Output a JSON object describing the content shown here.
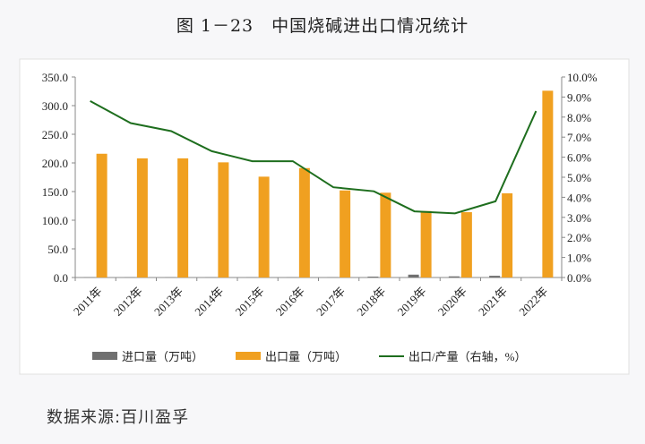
{
  "chart_data": {
    "type": "bar+line",
    "title": "图 1－23　中国烧碱进出口情况统计",
    "categories": [
      "2011年",
      "2012年",
      "2013年",
      "2014年",
      "2015年",
      "2016年",
      "2017年",
      "2018年",
      "2019年",
      "2020年",
      "2021年",
      "2022年"
    ],
    "series": [
      {
        "name": "进口量（万吨）",
        "type": "bar",
        "axis": "left",
        "color": "#707070",
        "values": [
          0.3,
          0.3,
          0.3,
          0.3,
          0.3,
          0.3,
          0.3,
          1.5,
          5,
          2,
          3,
          0.3
        ]
      },
      {
        "name": "出口量（万吨）",
        "type": "bar",
        "axis": "left",
        "color": "#f0a020",
        "values": [
          216,
          208,
          208,
          201,
          176,
          191,
          152,
          148,
          116,
          114,
          147,
          326
        ]
      },
      {
        "name": "出口/产量（右轴，%）",
        "type": "line",
        "axis": "right",
        "color": "#1e6e1e",
        "values": [
          8.8,
          7.7,
          7.3,
          6.3,
          5.8,
          5.8,
          4.5,
          4.3,
          3.3,
          3.2,
          3.8,
          8.3
        ]
      }
    ],
    "left_axis": {
      "range": [
        0,
        350
      ],
      "ticks": [
        "0.0",
        "50.0",
        "100.0",
        "150.0",
        "200.0",
        "250.0",
        "300.0",
        "350.0"
      ]
    },
    "right_axis": {
      "range": [
        0,
        10
      ],
      "ticks": [
        "0.0%",
        "1.0%",
        "2.0%",
        "3.0%",
        "4.0%",
        "5.0%",
        "6.0%",
        "7.0%",
        "8.0%",
        "9.0%",
        "10.0%"
      ]
    },
    "grid": false,
    "legend_placement": "bottom"
  },
  "source": "数据来源:百川盈孚"
}
